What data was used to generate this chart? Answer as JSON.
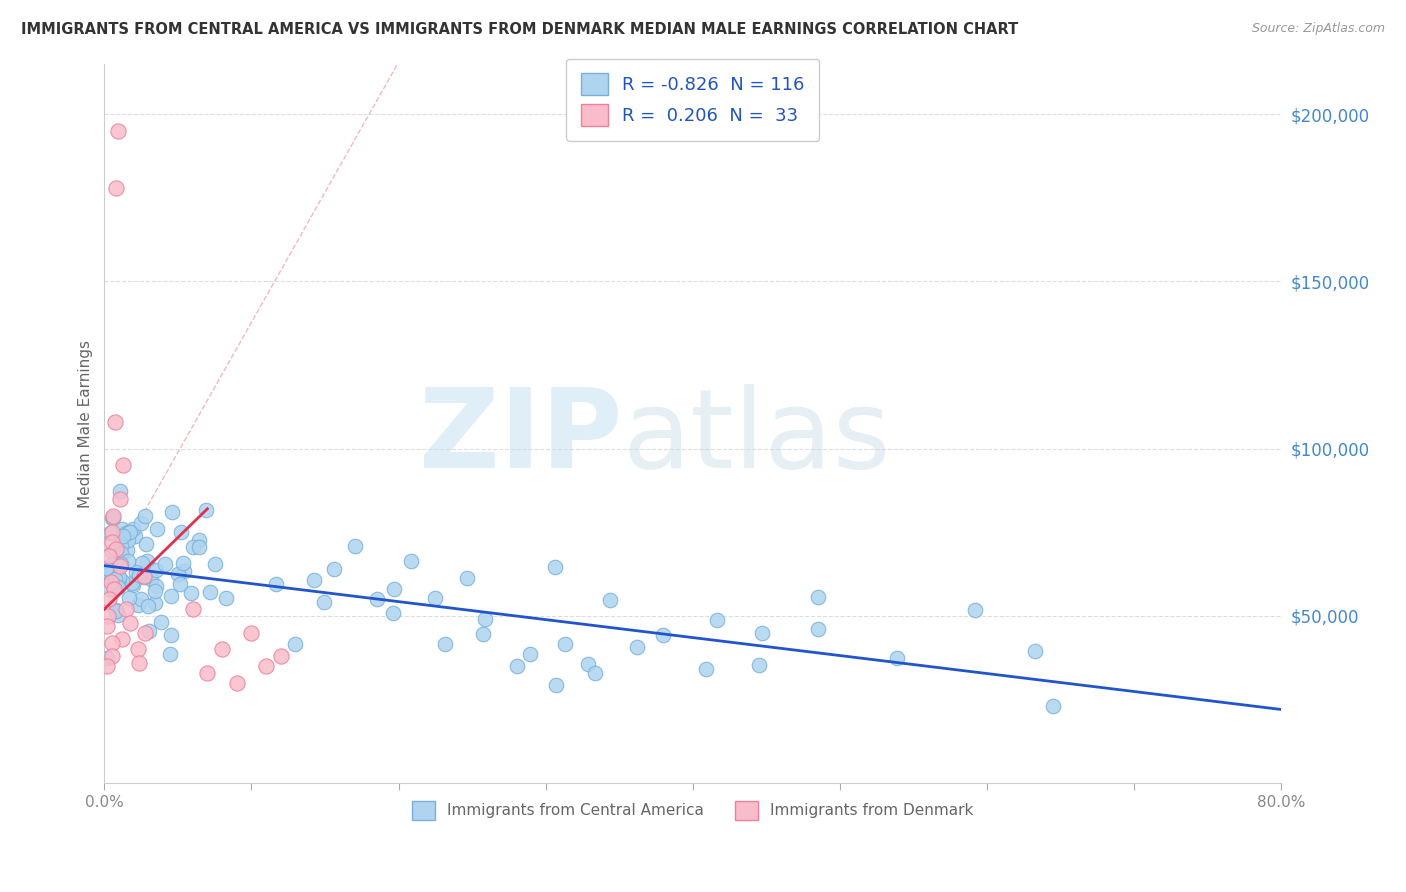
{
  "title": "IMMIGRANTS FROM CENTRAL AMERICA VS IMMIGRANTS FROM DENMARK MEDIAN MALE EARNINGS CORRELATION CHART",
  "source": "Source: ZipAtlas.com",
  "ylabel": "Median Male Earnings",
  "yticks": [
    0,
    50000,
    100000,
    150000,
    200000
  ],
  "ytick_labels": [
    "",
    "$50,000",
    "$100,000",
    "$150,000",
    "$200,000"
  ],
  "xlim": [
    0.0,
    0.8
  ],
  "ylim": [
    0,
    215000
  ],
  "legend_labels": [
    "Immigrants from Central America",
    "Immigrants from Denmark"
  ],
  "R_blue": -0.826,
  "N_blue": 116,
  "R_pink": 0.206,
  "N_pink": 33,
  "blue_color": "#aed4f0",
  "blue_edge": "#7ab0d8",
  "pink_color": "#f8bccb",
  "pink_edge": "#f08098",
  "blue_line_color": "#2255cc",
  "pink_line_color": "#e03050",
  "diag_color": "#f0b0b8",
  "watermark_zip": "ZIP",
  "watermark_atlas": "atlas",
  "background_color": "#ffffff",
  "seed": 99
}
